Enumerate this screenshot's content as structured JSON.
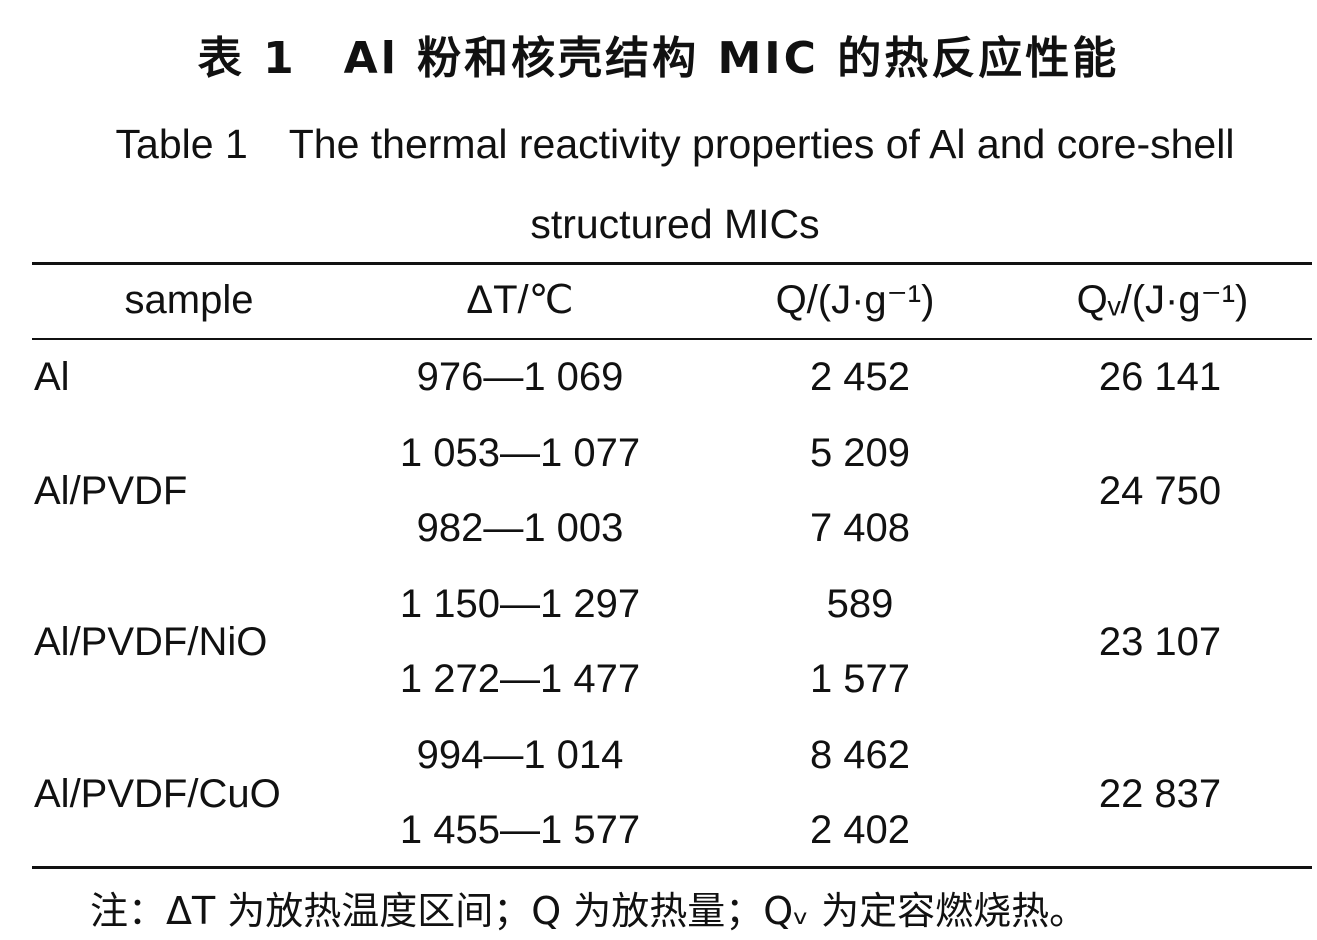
{
  "title_cn": "表 1　Al 粉和核壳结构 MIC 的热反应性能",
  "title_en": "Table 1　The thermal reactivity properties of Al and core-shell structured MICs",
  "headers": [
    "sample",
    "ΔT/℃",
    "Q/(J·g⁻¹)",
    "Qᵥ/(J·g⁻¹)"
  ],
  "rows": [
    {
      "sample": "Al",
      "dt": [
        "976—1 069"
      ],
      "q": [
        "2 452"
      ],
      "qv": "26 141"
    },
    {
      "sample": "Al/PVDF",
      "dt": [
        "1 053—1 077",
        "982—1 003"
      ],
      "q": [
        "5 209",
        "7 408"
      ],
      "qv": "24 750"
    },
    {
      "sample": "Al/PVDF/NiO",
      "dt": [
        "1 150—1 297",
        "1 272—1 477"
      ],
      "q": [
        "589",
        "1 577"
      ],
      "qv": "23 107"
    },
    {
      "sample": "Al/PVDF/CuO",
      "dt": [
        "994—1 014",
        "1 455—1 577"
      ],
      "q": [
        "8 462",
        "2 402"
      ],
      "qv": "22 837"
    }
  ],
  "note": "注：ΔT 为放热温度区间；Q 为放热量；Qᵥ 为定容燃烧热。"
}
